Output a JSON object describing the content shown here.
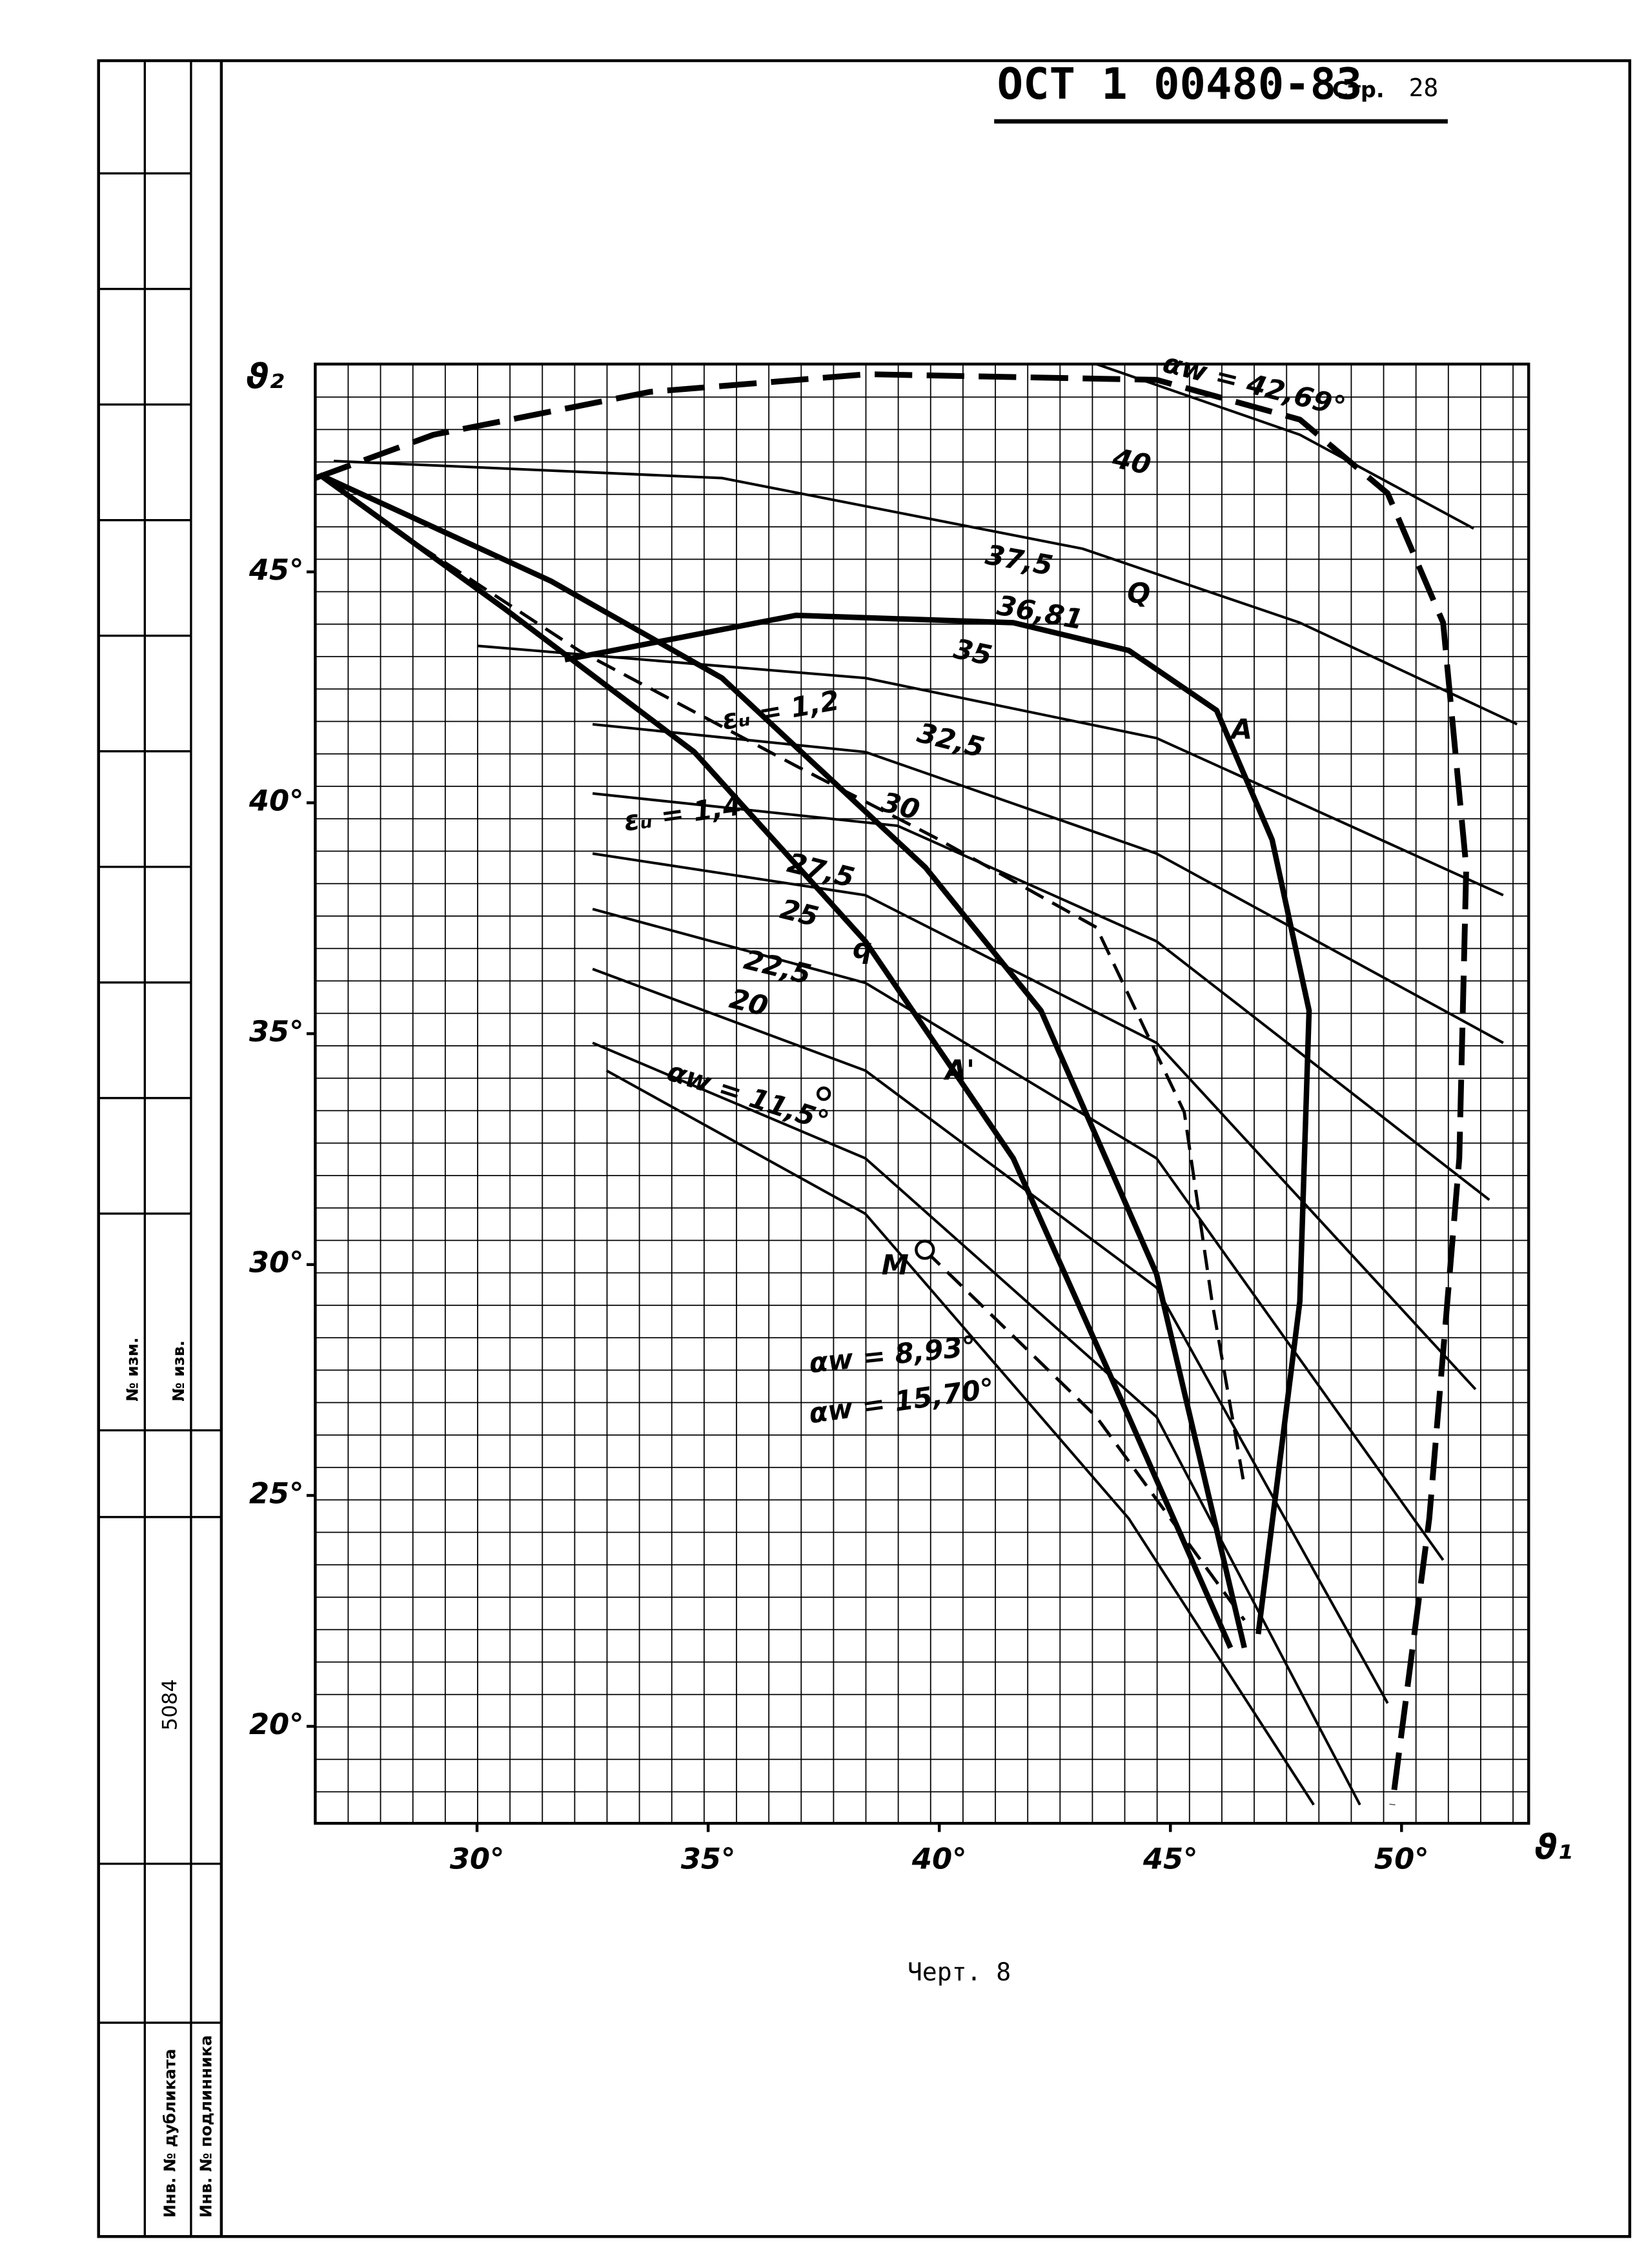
{
  "header": {
    "standard": "ОСТ 1 00480-83",
    "page_label": "Стр.",
    "page_number": "28"
  },
  "stamp": {
    "change_no": "№ изм.",
    "notice_no": "№ изв.",
    "number": "5084",
    "duplicate": "Инв. № дубликата",
    "original": "Инв. № подлинника"
  },
  "caption": "Черт. 8",
  "point_labels": [
    "Q",
    "q",
    "A",
    "A'",
    "M"
  ],
  "chart_data": {
    "type": "line",
    "x_label": "ϑ₁",
    "y_label": "ϑ₂",
    "xlim": [
      26.5,
      52.75
    ],
    "ylim": [
      17.9,
      49.5
    ],
    "xticks": [
      {
        "value": 30,
        "label": "30°"
      },
      {
        "value": 35,
        "label": "35°"
      },
      {
        "value": 40,
        "label": "40°"
      },
      {
        "value": 45,
        "label": "45°"
      },
      {
        "value": 50,
        "label": "50°"
      }
    ],
    "yticks": [
      {
        "value": 20,
        "label": "20°"
      },
      {
        "value": 25,
        "label": "25°"
      },
      {
        "value": 30,
        "label": "30°"
      },
      {
        "value": 35,
        "label": "35°"
      },
      {
        "value": 40,
        "label": "40°"
      },
      {
        "value": 45,
        "label": "45°"
      }
    ],
    "series": [
      {
        "name": "αw = 42,69°",
        "color": "#000",
        "style": "dashed-bold",
        "x": [
          26.5,
          29.06,
          33.75,
          38.44,
          44.7,
          47.8,
          49.7,
          50.9,
          51.4,
          51.25,
          50.6,
          49.8
        ],
        "values": [
          47.03,
          47.97,
          48.9,
          49.28,
          49.16,
          48.3,
          46.7,
          43.9,
          38.6,
          32.3,
          24.5,
          18.3
        ]
      },
      {
        "name": "40",
        "color": "#000",
        "style": "thin",
        "x": [
          43.4,
          47.8,
          51.56
        ],
        "values": [
          49.5,
          47.97,
          45.94
        ]
      },
      {
        "name": "37,5",
        "color": "#000",
        "style": "thin",
        "x": [
          26.9,
          35.3,
          43.1,
          47.8,
          52.5
        ],
        "values": [
          47.4,
          47.03,
          45.5,
          43.9,
          41.7
        ]
      },
      {
        "name": "36,81",
        "color": "#000",
        "style": "bold",
        "x": [
          31.9,
          36.9,
          41.6,
          44.1,
          46.0,
          47.2,
          48.0,
          47.8,
          46.9
        ],
        "values": [
          43.1,
          44.06,
          43.9,
          43.3,
          42.0,
          39.2,
          35.5,
          29.2,
          22.0
        ]
      },
      {
        "name": "35",
        "color": "#000",
        "style": "thin",
        "x": [
          30,
          38.4,
          44.7,
          52.2
        ],
        "values": [
          43.4,
          42.7,
          41.4,
          38
        ]
      },
      {
        "name": "32,5",
        "color": "#000",
        "style": "thin",
        "x": [
          32.5,
          38.4,
          44.7,
          52.2
        ],
        "values": [
          41.7,
          41.1,
          38.9,
          34.8
        ]
      },
      {
        "name": "30",
        "color": "#000",
        "style": "thin",
        "x": [
          32.5,
          39.1,
          44.7,
          51.9
        ],
        "values": [
          40.2,
          39.5,
          37.0,
          31.4
        ]
      },
      {
        "name": "27,5",
        "color": "#000",
        "style": "thin",
        "x": [
          32.5,
          38.4,
          44.7,
          51.6
        ],
        "values": [
          38.9,
          38.0,
          34.8,
          27.3
        ]
      },
      {
        "name": "25",
        "color": "#000",
        "style": "thin",
        "x": [
          32.5,
          38.4,
          44.7,
          50.9
        ],
        "values": [
          37.7,
          36.1,
          32.3,
          23.6
        ]
      },
      {
        "name": "22,5",
        "color": "#000",
        "style": "thin",
        "x": [
          32.5,
          38.4,
          44.7,
          49.7
        ],
        "values": [
          36.4,
          34.2,
          29.5,
          20.5
        ]
      },
      {
        "name": "20",
        "color": "#000",
        "style": "thin",
        "x": [
          32.5,
          38.4,
          44.7,
          49.1
        ],
        "values": [
          34.8,
          32.3,
          26.7,
          18.3
        ]
      },
      {
        "name": "αw = 11,5°",
        "color": "#000",
        "style": "thin",
        "x": [
          32.8,
          38.4,
          44.1,
          48.1
        ],
        "values": [
          34.2,
          31.1,
          24.5,
          18.3
        ]
      },
      {
        "name": "αw = 8,93°",
        "color": "#000",
        "style": "dashed",
        "x": [
          39.7,
          43.4,
          46.6
        ],
        "values": [
          30.3,
          26.7,
          22.3
        ]
      },
      {
        "name": "εᵤ = 1,2",
        "color": "#000",
        "style": "bold",
        "x": [
          26.6,
          31.6,
          35.3,
          39.7,
          42.2,
          44.7,
          46.6
        ],
        "values": [
          47.1,
          44.8,
          42.7,
          38.6,
          35.5,
          29.8,
          21.7
        ]
      },
      {
        "name": "εᵤ = 1,4",
        "color": "#000",
        "style": "bold",
        "x": [
          26.6,
          30.6,
          34.7,
          38.4,
          41.6,
          44.1,
          46.3
        ],
        "values": [
          47.1,
          44.2,
          41.1,
          37.0,
          32.3,
          26.7,
          21.7
        ]
      },
      {
        "name": "αw = 15,70°",
        "color": "#000",
        "style": "dashed",
        "x": [
          26.6,
          28.4,
          32.2,
          36.9,
          40,
          43.4,
          45.3,
          45.9,
          46.6
        ],
        "values": [
          47.1,
          45.8,
          43.3,
          40.8,
          39.2,
          37.3,
          33.3,
          29.2,
          25.2
        ]
      }
    ]
  }
}
